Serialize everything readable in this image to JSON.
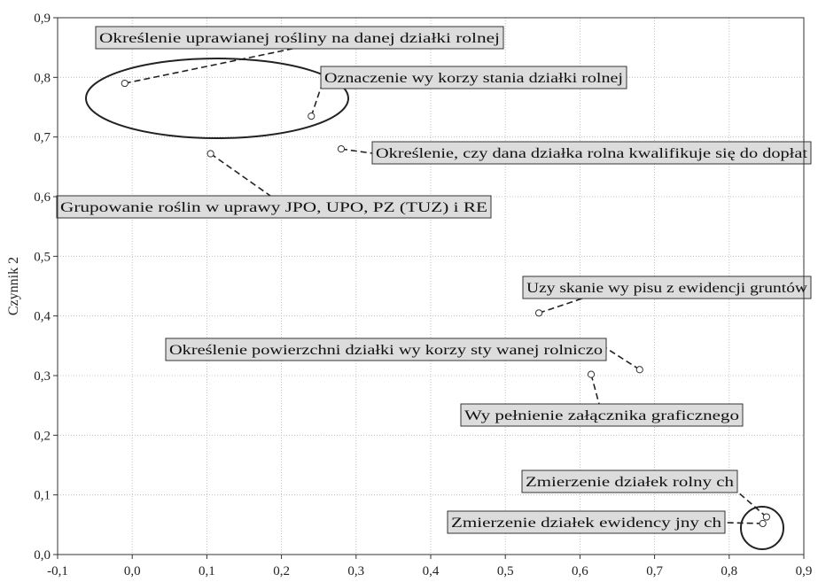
{
  "chart_data": {
    "type": "scatter",
    "ylabel": "Czynnik 2",
    "xlabel": "",
    "title": "",
    "xlim": [
      -0.1,
      0.9
    ],
    "ylim": [
      0.0,
      0.9
    ],
    "grid": true,
    "x_ticks": [
      "-0,1",
      "0,0",
      "0,1",
      "0,2",
      "0,3",
      "0,4",
      "0,5",
      "0,6",
      "0,7",
      "0,8",
      "0,9"
    ],
    "y_ticks": [
      "0,0",
      "0,1",
      "0,2",
      "0,3",
      "0,4",
      "0,5",
      "0,6",
      "0,7",
      "0,8",
      "0,9"
    ],
    "points": [
      {
        "label": "Określenie uprawianej rośliny na danej działki rolnej",
        "x": -0.01,
        "y": 0.79
      },
      {
        "label": "Oznaczenie wy korzy stania działki rolnej",
        "x": 0.24,
        "y": 0.735
      },
      {
        "label": "Określenie, czy dana działka rolna kwalifikuje się do dopłat",
        "x": 0.28,
        "y": 0.68
      },
      {
        "label": "Grupowanie roślin w uprawy JPO, UPO, PZ (TUZ) i RE",
        "x": 0.105,
        "y": 0.672
      },
      {
        "label": "Uzy skanie wy pisu z ewidencji gruntów",
        "x": 0.545,
        "y": 0.405
      },
      {
        "label": "Określenie powierzchni działki wy korzy sty wanej rolniczo",
        "x": 0.68,
        "y": 0.31
      },
      {
        "label": "Wy pełnienie załącznika graficznego",
        "x": 0.615,
        "y": 0.302
      },
      {
        "label": "Zmierzenie działek rolny ch",
        "x": 0.85,
        "y": 0.063
      },
      {
        "label": "Zmierzenie działek ewidency jny ch",
        "x": 0.845,
        "y": 0.052
      }
    ]
  }
}
